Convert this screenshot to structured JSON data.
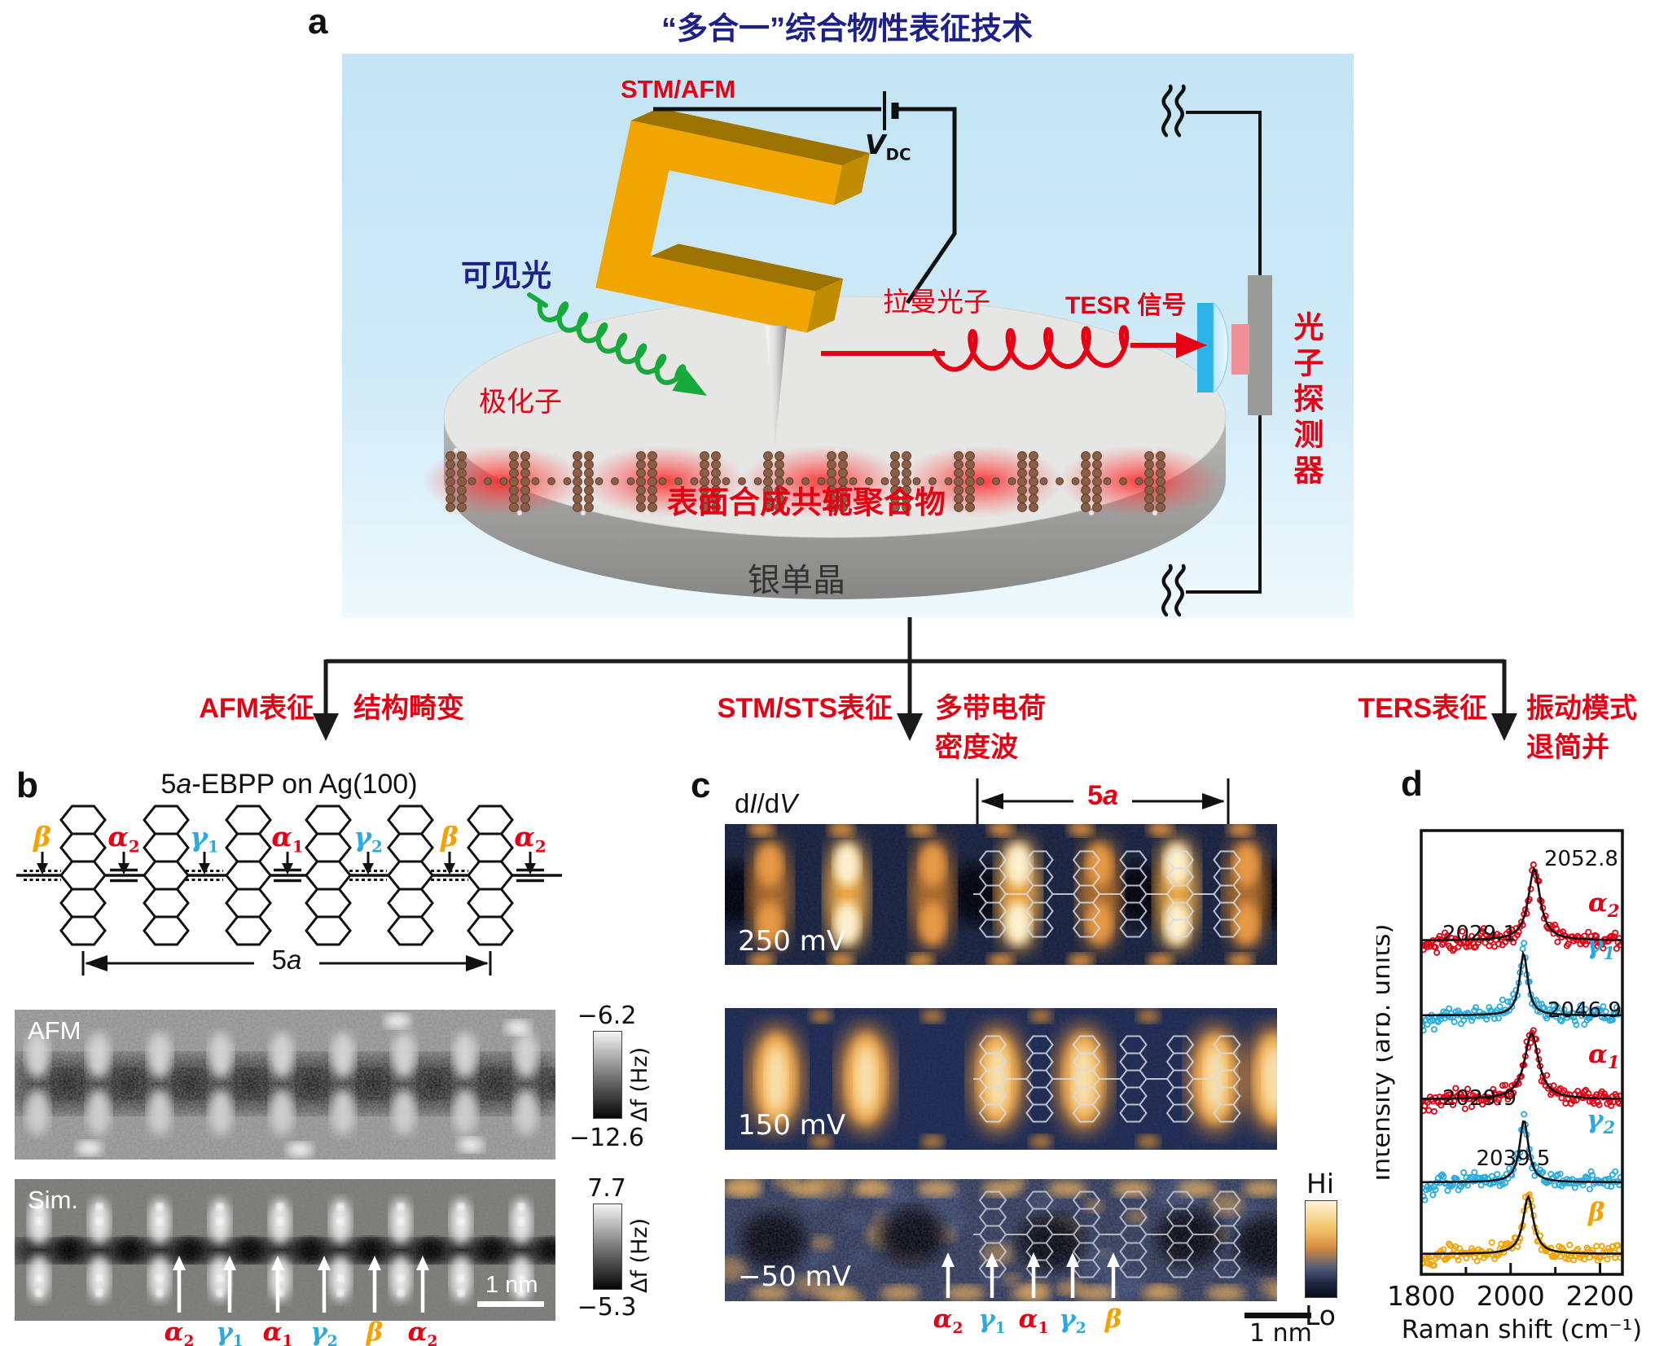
{
  "colors": {
    "red": "#e60013",
    "blue": "#29abe2",
    "orange": "#f5a200",
    "title_navy": "#1d2088",
    "box_blue": "#c5e6f5",
    "gold": "#f0a500"
  },
  "panel_a": {
    "label": "a",
    "title": "“多合一”综合物性表征技术",
    "stm_afm": "STM/AFM",
    "vdc_main": "V",
    "vdc_sub": "DC",
    "visible_light": "可见光",
    "polaron": "极化子",
    "raman_photon": "拉曼光子",
    "tesr_signal": "TESR 信号",
    "photon_detector": "光子探测器",
    "polymer_label": "表面合成共轭聚合物",
    "substrate_label": "银单晶"
  },
  "flow_branches": [
    {
      "method": "AFM表征",
      "result1": "结构畸变",
      "result2": ""
    },
    {
      "method": "STM/STS表征",
      "result1": "多带电荷",
      "result2": "密度波"
    },
    {
      "method": "TERS表征",
      "result1": "振动模式",
      "result2": "退简并"
    }
  ],
  "panel_b": {
    "label": "b",
    "title": "5a-EBPP on Ag(100)",
    "span_label": "5a",
    "bond_labels": [
      {
        "base": "β",
        "sub": "",
        "color": "#f5a200"
      },
      {
        "base": "α",
        "sub": "2",
        "color": "#e60013"
      },
      {
        "base": "γ",
        "sub": "1",
        "color": "#29abe2"
      },
      {
        "base": "α",
        "sub": "1",
        "color": "#e60013"
      },
      {
        "base": "γ",
        "sub": "2",
        "color": "#29abe2"
      },
      {
        "base": "β",
        "sub": "",
        "color": "#f5a200"
      },
      {
        "base": "α",
        "sub": "2",
        "color": "#e60013"
      }
    ],
    "afm": {
      "tag": "AFM",
      "cbar_top": "−6.2",
      "cbar_bottom": "−12.6",
      "cbar_unit": "Δf (Hz)"
    },
    "sim": {
      "tag": "Sim.",
      "cbar_top": "7.7",
      "cbar_bottom": "−5.3",
      "cbar_unit": "Δf (Hz)",
      "scalebar": "1 nm"
    },
    "arrow_labels": [
      {
        "base": "α",
        "sub": "2",
        "color": "#e60013"
      },
      {
        "base": "γ",
        "sub": "1",
        "color": "#29abe2"
      },
      {
        "base": "α",
        "sub": "1",
        "color": "#e60013"
      },
      {
        "base": "γ",
        "sub": "2",
        "color": "#29abe2"
      },
      {
        "base": "β",
        "sub": "",
        "color": "#f5a200"
      },
      {
        "base": "α",
        "sub": "2",
        "color": "#e60013"
      }
    ]
  },
  "panel_c": {
    "label": "c",
    "map_type": "dI/dV",
    "span_label": "5a",
    "maps": [
      {
        "bias": "250 mV"
      },
      {
        "bias": "150 mV"
      },
      {
        "bias": "−50 mV"
      }
    ],
    "colorbar_top": "Hi",
    "colorbar_bottom": "Lo",
    "scalebar": "1 nm",
    "arrow_labels": [
      {
        "base": "α",
        "sub": "2",
        "color": "#e60013"
      },
      {
        "base": "γ",
        "sub": "1",
        "color": "#29abe2"
      },
      {
        "base": "α",
        "sub": "1",
        "color": "#e60013"
      },
      {
        "base": "γ",
        "sub": "2",
        "color": "#29abe2"
      },
      {
        "base": "β",
        "sub": "",
        "color": "#f5a200"
      }
    ]
  },
  "panel_d": {
    "label": "d"
  },
  "chart_data": {
    "type": "line+scatter",
    "title": "",
    "xlabel": "Raman shift (cm⁻¹)",
    "ylabel": "Intensity (arb. units)",
    "xlim": [
      1800,
      2250
    ],
    "xticks": [
      1800,
      2000,
      2200
    ],
    "xticks_minor": [
      1900,
      2100
    ],
    "grid": false,
    "legend_position": "inline-right",
    "series": [
      {
        "name": "α",
        "sub": "2",
        "color": "#e60013",
        "peak_center": 2052.8,
        "peak_label": "2052.8",
        "label_side": "right",
        "amplitude": 1.0,
        "hwhm": 16
      },
      {
        "name": "γ",
        "sub": "1",
        "color": "#29abe2",
        "peak_center": 2029.1,
        "peak_label": "2029.1",
        "label_side": "left",
        "amplitude": 0.87,
        "hwhm": 11
      },
      {
        "name": "α",
        "sub": "1",
        "color": "#e60013",
        "peak_center": 2046.9,
        "peak_label": "2046.9",
        "label_side": "right",
        "amplitude": 0.92,
        "hwhm": 19
      },
      {
        "name": "γ",
        "sub": "2",
        "color": "#29abe2",
        "peak_center": 2029.9,
        "peak_label": "2029.9",
        "label_side": "left",
        "amplitude": 0.87,
        "hwhm": 12
      },
      {
        "name": "β",
        "sub": "",
        "color": "#f5a200",
        "peak_center": 2039.5,
        "peak_label": "2039.5",
        "label_side": "above",
        "amplitude": 0.8,
        "hwhm": 14
      }
    ]
  }
}
